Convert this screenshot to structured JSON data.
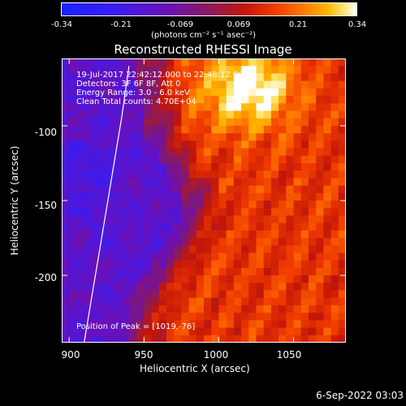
{
  "colorbar": {
    "ticks": [
      "-0.34",
      "-0.21",
      "-0.069",
      "0.069",
      "0.21",
      "0.34"
    ],
    "units": "(photons cm⁻² s⁻¹ asec⁻²)",
    "vmin": -0.34,
    "vmax": 0.34,
    "colors": [
      "#1a22ff",
      "#6a10b8",
      "#c2160a",
      "#ff7a00",
      "#ffb400",
      "#ffffff"
    ]
  },
  "chart_data": {
    "type": "heatmap",
    "title": "Reconstructed RHESSI Image",
    "xlabel": "Heliocentric X (arcsec)",
    "ylabel": "Heliocentric Y (arcsec)",
    "xlim": [
      895,
      1085
    ],
    "ylim": [
      -245,
      -55
    ],
    "xticks": [
      "900",
      "950",
      "1000",
      "1050"
    ],
    "yticks": [
      "-100",
      "-150",
      "-200"
    ],
    "annotations": [
      "19-Jul-2017 22:42:12.000 to 22:48:12.000",
      "Detectors: 3F 6F 8F, Att 0",
      "Energy Range: 3.0 - 6.0 keV",
      "Clean    Total counts: 4.70E+04"
    ],
    "peak_label": "Position of Peak = [1019,-76]",
    "peak": {
      "x": 1019,
      "y": -76
    },
    "limb": {
      "x": [
        910,
        915,
        920,
        925,
        930,
        935,
        940
      ],
      "y": [
        -245,
        -215,
        -185,
        -155,
        -125,
        -95,
        -60
      ]
    }
  },
  "footer": {
    "date": "6-Sep-2022 03:03"
  }
}
